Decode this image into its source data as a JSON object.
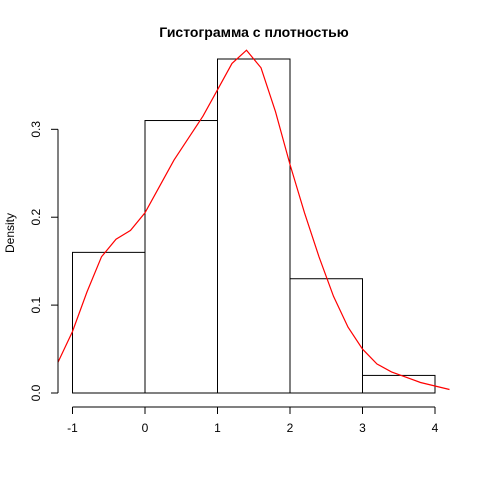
{
  "chart_data": {
    "type": "bar",
    "title": "Гистограмма с плотностью",
    "xlabel": "",
    "ylabel": "Density",
    "xlim": [
      -1,
      4
    ],
    "ylim": [
      0,
      0.38
    ],
    "grid": false,
    "x_ticks": [
      -1,
      0,
      1,
      2,
      3,
      4
    ],
    "y_ticks": [
      0.0,
      0.1,
      0.2,
      0.3
    ],
    "y_tick_labels": [
      "0.0",
      "0.1",
      "0.2",
      "0.3"
    ],
    "bins": [
      {
        "from": -1,
        "to": 0,
        "density": 0.16
      },
      {
        "from": 0,
        "to": 1,
        "density": 0.31
      },
      {
        "from": 1,
        "to": 2,
        "density": 0.38
      },
      {
        "from": 2,
        "to": 3,
        "density": 0.13
      },
      {
        "from": 3,
        "to": 4,
        "density": 0.02
      }
    ],
    "bar_fill": "#ffffff",
    "bar_stroke": "#000000",
    "density_curve": {
      "color": "#ff0000",
      "x": [
        -1.2,
        -1.0,
        -0.8,
        -0.6,
        -0.4,
        -0.2,
        0.0,
        0.2,
        0.4,
        0.6,
        0.8,
        1.0,
        1.2,
        1.4,
        1.6,
        1.8,
        2.0,
        2.2,
        2.4,
        2.6,
        2.8,
        3.0,
        3.2,
        3.4,
        3.6,
        3.8,
        4.0,
        4.2
      ],
      "y": [
        0.035,
        0.07,
        0.115,
        0.155,
        0.175,
        0.185,
        0.205,
        0.235,
        0.265,
        0.29,
        0.315,
        0.345,
        0.375,
        0.39,
        0.37,
        0.32,
        0.26,
        0.205,
        0.155,
        0.11,
        0.075,
        0.05,
        0.033,
        0.024,
        0.018,
        0.012,
        0.008,
        0.004
      ]
    }
  }
}
